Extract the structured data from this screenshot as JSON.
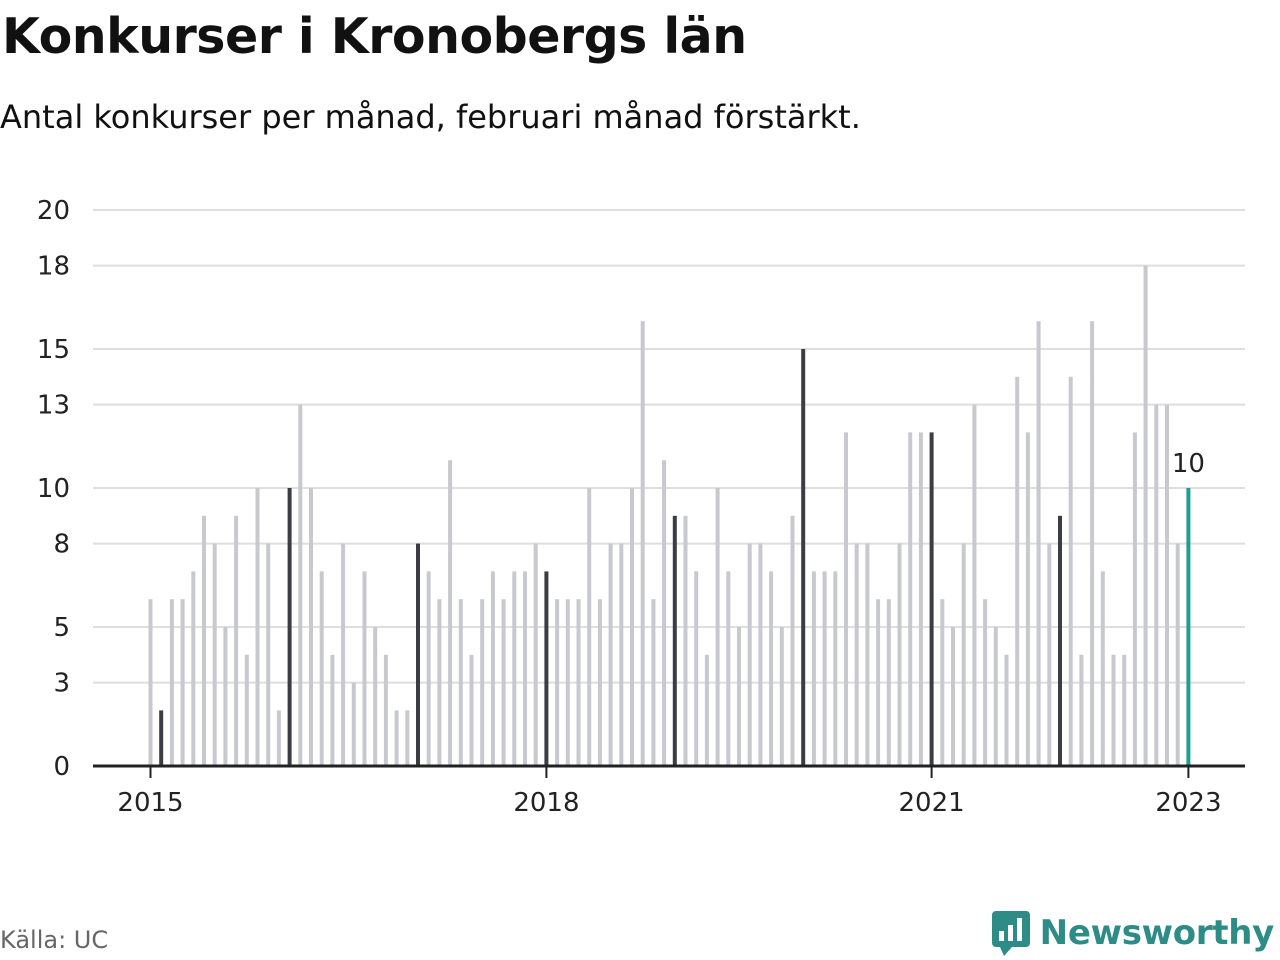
{
  "title": "Konkurser i Kronobergs län",
  "subtitle": "Antal konkurser per månad, februari månad förstärkt.",
  "source": "Källa: UC",
  "brand": {
    "name": "Newsworthy",
    "logo_icon": "bar-chart-speech-bubble-icon"
  },
  "colors": {
    "normal": "#c8c8cf",
    "highlight": "#3c3c44",
    "latest": "#1f9e93",
    "grid": "#dedede",
    "axis": "#222222",
    "brand": "#2e8c87"
  },
  "chart_data": {
    "type": "bar",
    "start": "2015-01",
    "ylim": [
      0,
      20
    ],
    "yticks": [
      0,
      3,
      5,
      8,
      10,
      13,
      15,
      18,
      20
    ],
    "xticks": [
      "2015",
      "2018",
      "2021",
      "2023"
    ],
    "highlighted_month": "February",
    "latest_label": "10",
    "values": [
      6,
      2,
      6,
      6,
      7,
      9,
      8,
      5,
      9,
      4,
      10,
      8,
      2,
      10,
      13,
      10,
      7,
      4,
      8,
      3,
      7,
      5,
      4,
      2,
      2,
      8,
      7,
      6,
      11,
      6,
      4,
      6,
      7,
      6,
      7,
      7,
      8,
      7,
      6,
      6,
      6,
      10,
      6,
      8,
      8,
      10,
      16,
      6,
      11,
      9,
      9,
      7,
      4,
      10,
      7,
      5,
      8,
      8,
      7,
      5,
      9,
      15,
      7,
      7,
      7,
      12,
      8,
      8,
      6,
      6,
      8,
      12,
      12,
      12,
      6,
      5,
      8,
      13,
      6,
      5,
      4,
      14,
      12,
      16,
      8,
      9,
      14,
      4,
      16,
      7,
      4,
      4,
      12,
      18,
      13,
      13,
      8,
      10
    ]
  }
}
